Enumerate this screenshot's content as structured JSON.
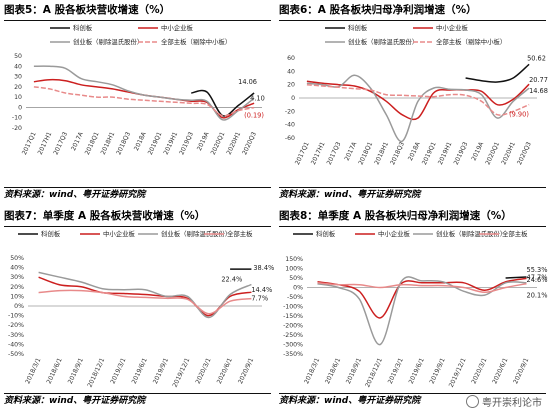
{
  "watermark": "粤开崇利论市",
  "colors": {
    "black": "#111111",
    "red": "#cc1f1f",
    "gray": "#9a9a9a",
    "pink": "#e88a8a"
  },
  "panels": [
    {
      "id": "p5",
      "title": "图表5：A 股各板块营收增速（%）",
      "source": "资料来源：wind、粤开证券研究院",
      "legend_cols": 2,
      "chart_data": {
        "type": "line",
        "x": [
          "2017Q1",
          "2017H1",
          "2017Q3",
          "2017A",
          "2018Q1",
          "2018H1",
          "2018Q3",
          "2018A",
          "2019Q1",
          "2019H1",
          "2019Q3",
          "2019A",
          "2020Q1",
          "2020H1",
          "2020Q3"
        ],
        "y_ticks": [
          50,
          40,
          30,
          20,
          10,
          0,
          -10,
          -20
        ],
        "ylim": [
          -20,
          50
        ],
        "series": [
          {
            "name": "科创板",
            "color": "black",
            "dash": "",
            "values": [
              null,
              null,
              null,
              null,
              null,
              null,
              null,
              null,
              null,
              null,
              14,
              15,
              -8,
              2,
              14.06
            ]
          },
          {
            "name": "中小企业板",
            "color": "red",
            "dash": "",
            "values": [
              25,
              27,
              26,
              22,
              20,
              18,
              15,
              12,
              10,
              8,
              6,
              5,
              -10,
              -2,
              4.1
            ]
          },
          {
            "name": "创业板（剔除温氏股份）",
            "color": "gray",
            "dash": "",
            "values": [
              40,
              40,
              38,
              28,
              25,
              22,
              16,
              12,
              10,
              8,
              7,
              6,
              -12,
              -3,
              9
            ]
          },
          {
            "name": "全部主板（剔除中小板）",
            "color": "pink",
            "dash": "5,2",
            "values": [
              20,
              18,
              14,
              12,
              10,
              10,
              8,
              7,
              6,
              5,
              4,
              3,
              -8,
              -3,
              -0.19
            ]
          }
        ],
        "labels": [
          {
            "text": "14.06",
            "color": "#222222",
            "xi": 14,
            "y": 20,
            "dx": -16,
            "dy": -3
          },
          {
            "text": "4.10",
            "color": "#222222",
            "xi": 14,
            "y": 6,
            "dx": -4,
            "dy": -1
          },
          {
            "text": "(0.19)",
            "color": "#cc1f1f",
            "xi": 14,
            "y": -8,
            "dx": -10,
            "dy": 2
          }
        ]
      }
    },
    {
      "id": "p6",
      "title": "图表6：A 股各板块归母净利润增速（%）",
      "source": "资料来源：wind、粤开证券研究院",
      "legend_cols": 2,
      "chart_data": {
        "type": "line",
        "x": [
          "2017Q1",
          "2017H1",
          "2017Q3",
          "2017A",
          "2018Q1",
          "2018H1",
          "2018Q3",
          "2018A",
          "2019Q1",
          "2019H1",
          "2019Q3",
          "2019A",
          "2020Q1",
          "2020H1",
          "2020Q3"
        ],
        "y_ticks": [
          60,
          40,
          20,
          0,
          -20,
          -40,
          -60
        ],
        "ylim": [
          -60,
          60
        ],
        "series": [
          {
            "name": "科创板",
            "color": "black",
            "dash": "",
            "values": [
              null,
              null,
              null,
              null,
              null,
              null,
              null,
              null,
              null,
              null,
              30,
              26,
              24,
              30,
              50.62
            ]
          },
          {
            "name": "中小企业板",
            "color": "red",
            "dash": "",
            "values": [
              25,
              22,
              20,
              18,
              10,
              -5,
              -25,
              -30,
              8,
              12,
              12,
              10,
              -10,
              -2,
              20.77
            ]
          },
          {
            "name": "创业板（剔除温氏股份）",
            "color": "gray",
            "dash": "",
            "values": [
              22,
              20,
              17,
              34,
              15,
              -25,
              -65,
              -5,
              15,
              13,
              12,
              5,
              -30,
              -5,
              14.68
            ]
          },
          {
            "name": "全部主板（剔除中小板）",
            "color": "pink",
            "dash": "5,2",
            "values": [
              20,
              18,
              16,
              14,
              12,
              5,
              4,
              3,
              2,
              5,
              4,
              -5,
              -25,
              -20,
              -9.9
            ]
          }
        ],
        "labels": [
          {
            "text": "50.62",
            "color": "#222222",
            "xi": 14,
            "y": 50.62,
            "dx": -2,
            "dy": -4
          },
          {
            "text": "20.77",
            "color": "#222222",
            "xi": 14,
            "y": 20.77,
            "dx": 0,
            "dy": -2
          },
          {
            "text": "14.68",
            "color": "#222222",
            "xi": 14,
            "y": 14.68,
            "dx": 0,
            "dy": 5
          },
          {
            "text": "(9.90)",
            "color": "#cc1f1f",
            "xi": 14,
            "y": -9.9,
            "dx": -20,
            "dy": 12
          }
        ]
      }
    },
    {
      "id": "p7",
      "title": "图表7：单季度 A 股各板块营收增速（%）",
      "source": "资料来源：wind、粤开证券研究院",
      "legend_cols": 4,
      "chart_data": {
        "type": "line",
        "x": [
          "2018/3/1",
          "2018/6/1",
          "2018/9/1",
          "2018/12/1",
          "2019/3/1",
          "2019/6/1",
          "2019/9/1",
          "2019/12/1",
          "2020/3/1",
          "2020/6/1",
          "2020/9/1"
        ],
        "y_ticks": [
          "50%",
          "40%",
          "30%",
          "20%",
          "10%",
          "0%",
          "-10%",
          "-20%",
          "-30%",
          "-40%",
          "-50%"
        ],
        "ylim": [
          -50,
          50
        ],
        "series": [
          {
            "name": "科创板",
            "color": "black",
            "dash": "",
            "values": [
              null,
              null,
              null,
              null,
              null,
              null,
              null,
              null,
              null,
              38.4,
              38.4
            ]
          },
          {
            "name": "中小企业板",
            "color": "red",
            "dash": "",
            "values": [
              30,
              22,
              20,
              14,
              13,
              12,
              10,
              8,
              -10,
              10,
              14.4
            ]
          },
          {
            "name": "创业板（剔除温氏股份）",
            "color": "gray",
            "dash": "",
            "values": [
              35,
              30,
              25,
              18,
              17,
              17,
              10,
              10,
              -12,
              12,
              22.4
            ]
          },
          {
            "name": "全部主板",
            "color": "pink",
            "dash": "",
            "values": [
              14,
              16,
              16,
              14,
              10,
              9,
              8,
              7,
              -8,
              5,
              7.7
            ]
          }
        ],
        "labels": [
          {
            "text": "38.4%",
            "color": "#222222",
            "xi": 10,
            "y": 38.4,
            "dx": 2,
            "dy": 1
          },
          {
            "text": "22.4%",
            "color": "#222222",
            "xi": 10,
            "y": 22.4,
            "dx": -30,
            "dy": -3
          },
          {
            "text": "14.4%",
            "color": "#222222",
            "xi": 10,
            "y": 14.4,
            "dx": 0,
            "dy": 0
          },
          {
            "text": "7.7%",
            "color": "#222222",
            "xi": 10,
            "y": 7.7,
            "dx": 0,
            "dy": 2
          }
        ]
      }
    },
    {
      "id": "p8",
      "title": "图表8：单季度 A 股各板块归母净利润增速（%）",
      "source": "资料来源：wind、粤开证券研究院",
      "legend_cols": 4,
      "chart_data": {
        "type": "line",
        "x": [
          "2018/3/1",
          "2018/6/1",
          "2018/9/1",
          "2018/12/1",
          "2019/3/1",
          "2019/6/1",
          "2019/9/1",
          "2019/12/1",
          "2020/3/1",
          "2020/6/1",
          "2020/9/1"
        ],
        "y_ticks": [
          "150%",
          "100%",
          "50%",
          "0%",
          "-50%",
          "-100%",
          "-150%",
          "-200%",
          "-250%",
          "-300%",
          "-350%"
        ],
        "ylim": [
          -350,
          150
        ],
        "series": [
          {
            "name": "科创板",
            "color": "black",
            "dash": "",
            "values": [
              null,
              null,
              null,
              null,
              null,
              null,
              null,
              null,
              null,
              50,
              55.3
            ]
          },
          {
            "name": "中小企业板",
            "color": "red",
            "dash": "",
            "values": [
              30,
              15,
              -20,
              -160,
              20,
              25,
              25,
              25,
              -15,
              30,
              47.7
            ]
          },
          {
            "name": "创业板（剔除温氏股份）",
            "color": "gray",
            "dash": "",
            "values": [
              20,
              0,
              -60,
              -300,
              30,
              35,
              30,
              -20,
              -40,
              25,
              24.6
            ]
          },
          {
            "name": "全部主板",
            "color": "pink",
            "dash": "",
            "values": [
              25,
              15,
              15,
              0,
              15,
              10,
              10,
              0,
              -25,
              0,
              20.1
            ]
          }
        ],
        "labels": [
          {
            "text": "55.3%",
            "color": "#222222",
            "xi": 10,
            "y": 55.3,
            "dx": 0,
            "dy": -5
          },
          {
            "text": "47.7%",
            "color": "#222222",
            "xi": 10,
            "y": 47.7,
            "dx": 0,
            "dy": 1
          },
          {
            "text": "24.6%",
            "color": "#222222",
            "xi": 10,
            "y": 24.6,
            "dx": 0,
            "dy": -1
          },
          {
            "text": "20.1%",
            "color": "#222222",
            "xi": 10,
            "y": 20.1,
            "dx": 0,
            "dy": 14
          }
        ]
      }
    }
  ]
}
